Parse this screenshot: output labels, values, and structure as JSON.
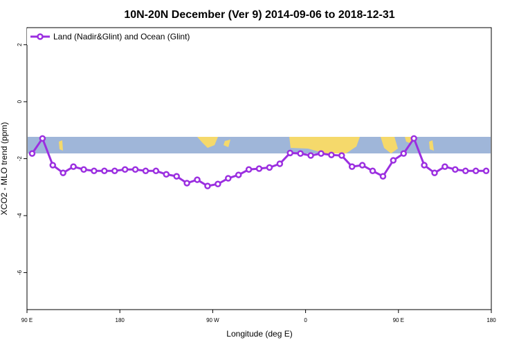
{
  "chart_data": {
    "type": "line",
    "title": "10N-20N December (Ver 9)   2014-09-06 to 2018-12-31",
    "x_label": "Longitude (deg E)",
    "y_label": "XCO2 - MLO trend (ppm)",
    "x": [
      95,
      105,
      115,
      125,
      135,
      145,
      155,
      165,
      175,
      185,
      195,
      205,
      215,
      225,
      235,
      245,
      255,
      265,
      275,
      285,
      295,
      305,
      315,
      325,
      335,
      345,
      355,
      365,
      375,
      385,
      395,
      405,
      415,
      425,
      435,
      445,
      455,
      465,
      475,
      485,
      495,
      505,
      515,
      525,
      535
    ],
    "series": [
      {
        "name": "Land (Nadir&Glint) and Ocean (Glint)",
        "color": "#9b2fe0",
        "values": [
          -1.82,
          -1.29,
          -2.23,
          -2.5,
          -2.28,
          -2.38,
          -2.43,
          -2.43,
          -2.43,
          -2.38,
          -2.38,
          -2.43,
          -2.43,
          -2.55,
          -2.62,
          -2.86,
          -2.74,
          -2.96,
          -2.89,
          -2.69,
          -2.57,
          -2.38,
          -2.35,
          -2.31,
          -2.18,
          -1.8,
          -1.82,
          -1.89,
          -1.82,
          -1.87,
          -1.89,
          -2.28,
          -2.23,
          -2.43,
          -2.62,
          -2.06,
          -1.82,
          -1.29,
          -2.23,
          -2.5,
          -2.28,
          -2.38,
          -2.43,
          -2.43,
          -2.43
        ]
      }
    ],
    "xlim": [
      90,
      540
    ],
    "xticks": [
      {
        "value": 90,
        "label": "90 E"
      },
      180,
      {
        "value": 270,
        "label": "90 W"
      },
      {
        "value": 360,
        "label": "0"
      },
      {
        "value": 450,
        "label": "90 E"
      },
      {
        "value": 540,
        "label": "180"
      }
    ],
    "ylim": [
      -7.3,
      2.6
    ],
    "yticks": [
      -6,
      -4,
      -2,
      0,
      2
    ],
    "legend": "top-left"
  }
}
